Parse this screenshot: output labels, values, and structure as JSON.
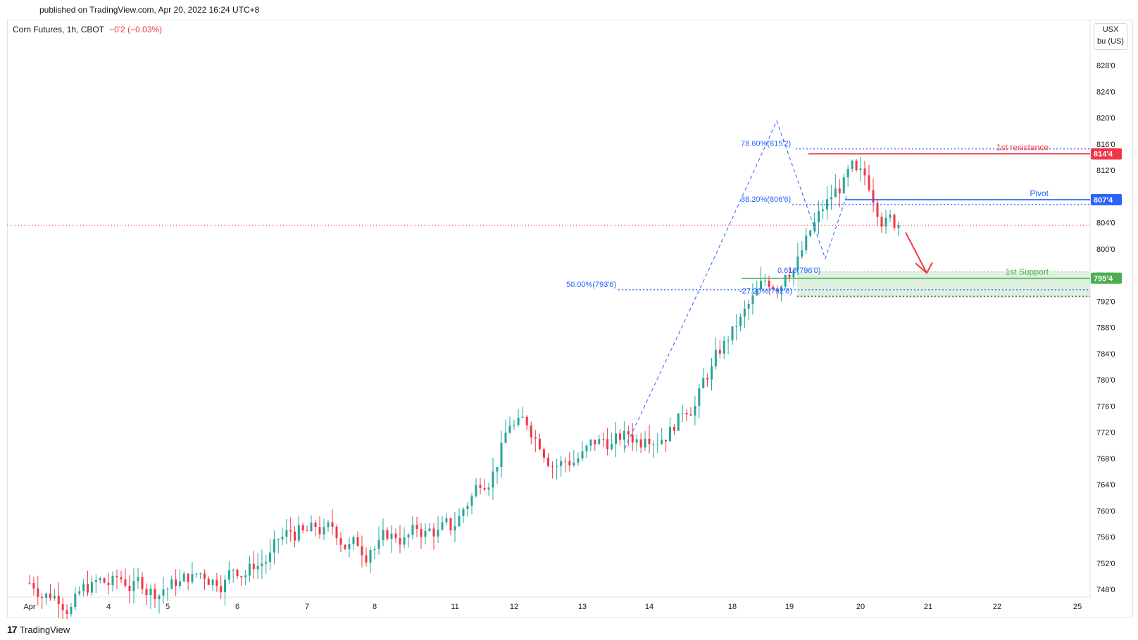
{
  "header": {
    "published": "published on TradingView.com, Apr 20, 2022 16:24 UTC+8"
  },
  "symbol": {
    "label": "Corn Futures, 1h, CBOT",
    "change": "−0'2 (−0.03%)"
  },
  "currency": {
    "line1": "USX",
    "line2": "bu (US)"
  },
  "footer": {
    "brand": "TradingView"
  },
  "colors": {
    "up": "#26a69a",
    "down": "#f23645",
    "resistance": "#f23645",
    "pivot": "#2962ff",
    "support": "#4caf50",
    "fib": "#2962ff",
    "fib_orange": "#ff9800",
    "zone": "#c8e6c9"
  },
  "levels": {
    "resistance": {
      "name": "1st resistance",
      "price_label": "814'4",
      "value": 814.5
    },
    "pivot": {
      "name": "Pivot",
      "price_label": "807'4",
      "value": 807.5
    },
    "support": {
      "name": "1st Support",
      "price_label": "795'4",
      "value": 795.5
    }
  },
  "fib_labels": [
    {
      "text": "78.60%(815'2)",
      "value": 815.25
    },
    {
      "text": "38.20%(806'6)",
      "value": 806.75
    },
    {
      "text": "50.00%(793'6)",
      "value": 793.75
    },
    {
      "text": "0.618(796'0)",
      "value": 796.0
    },
    {
      "text": "-27.20%(792'6)",
      "value": 792.75
    }
  ],
  "chart_data": {
    "type": "candlestick",
    "title": "Corn Futures, 1h, CBOT",
    "y_ticks": [
      "828'0",
      "824'0",
      "820'0",
      "816'0",
      "812'0",
      "808'0",
      "804'0",
      "800'0",
      "796'0",
      "792'0",
      "788'0",
      "784'0",
      "780'0",
      "776'0",
      "772'0",
      "768'0",
      "764'0",
      "760'0",
      "756'0",
      "752'0",
      "748'0"
    ],
    "y_tick_values": [
      828,
      824,
      820,
      816,
      812,
      808,
      804,
      800,
      796,
      792,
      788,
      784,
      780,
      776,
      772,
      768,
      764,
      760,
      756,
      752,
      748
    ],
    "ylim": [
      746.5,
      831
    ],
    "x_ticks": [
      "Apr",
      "4",
      "5",
      "6",
      "7",
      "8",
      "11",
      "12",
      "13",
      "14",
      "18",
      "19",
      "20",
      "21",
      "22",
      "25"
    ],
    "last_price": 803.6,
    "session_closes": [
      {
        "date": "Apr",
        "close": 749
      },
      {
        "date": "4",
        "close": 748
      },
      {
        "date": "5",
        "close": 751
      },
      {
        "date": "6",
        "close": 757
      },
      {
        "date": "7",
        "close": 754
      },
      {
        "date": "8",
        "close": 757
      },
      {
        "date": "11",
        "close": 773
      },
      {
        "date": "12",
        "close": 768
      },
      {
        "date": "13",
        "close": 771
      },
      {
        "date": "14",
        "close": 786
      },
      {
        "date": "18",
        "close": 796
      },
      {
        "date": "19",
        "close": 812
      },
      {
        "date": "20",
        "close": 803.6
      }
    ]
  }
}
